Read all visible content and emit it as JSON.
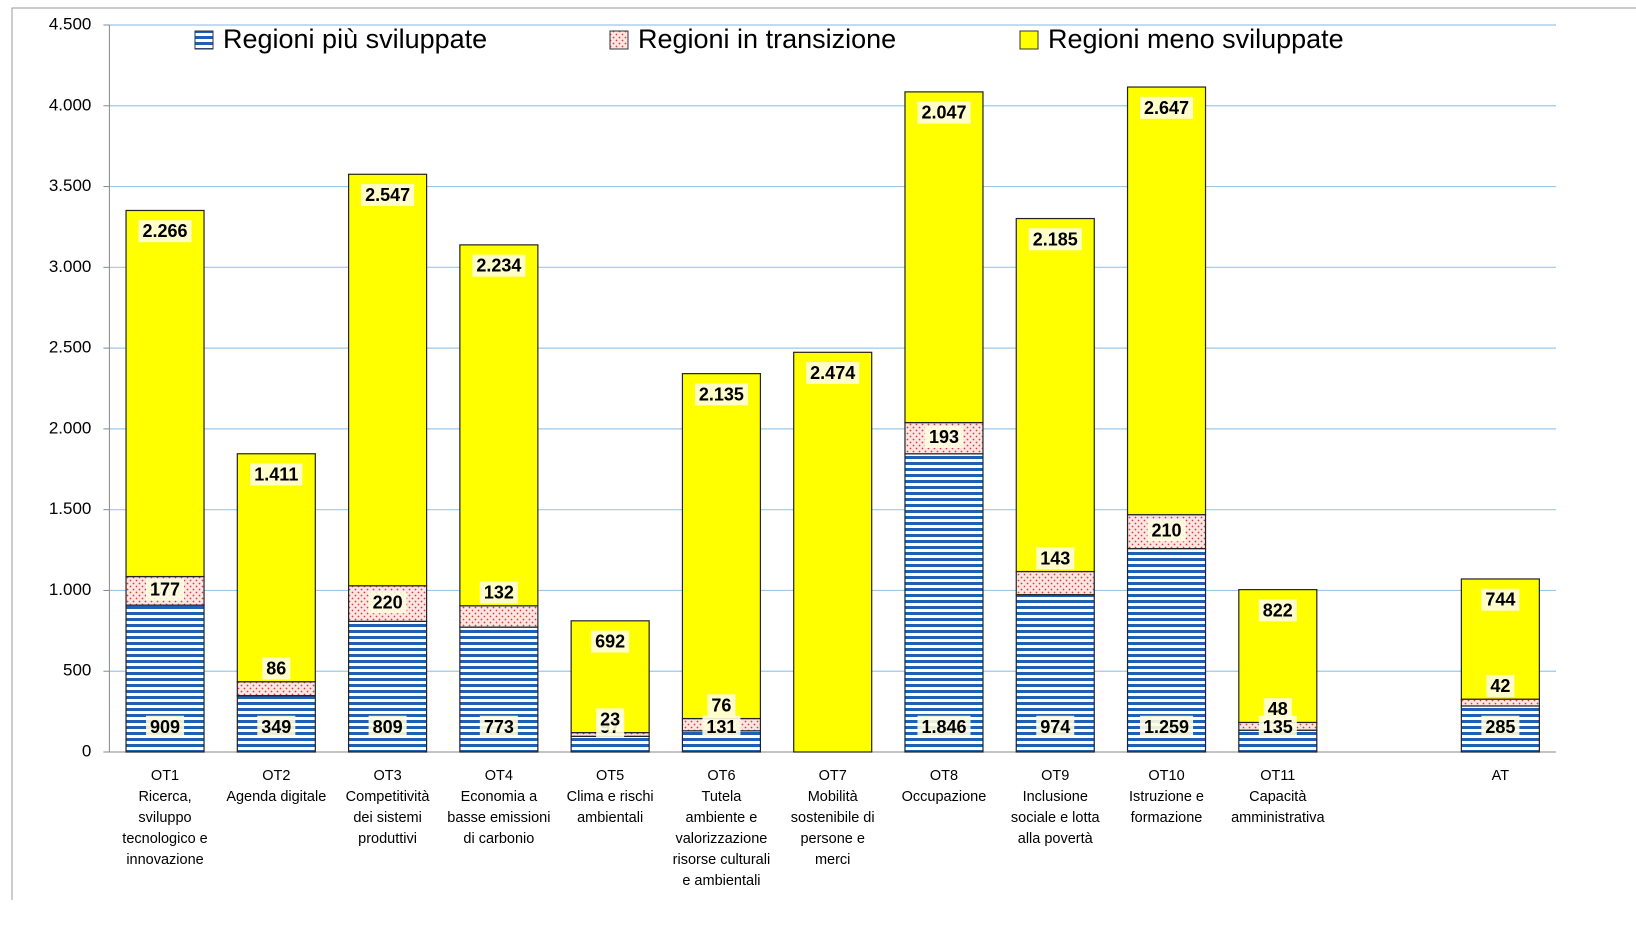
{
  "chart_data": {
    "type": "bar",
    "stacked": true,
    "categories": [
      "OT1\nRicerca,\nsviluppo\ntecnologico e\ninnovazione",
      "OT2\nAgenda digitale",
      "OT3\nCompetitività\ndei sistemi\nproduttivi",
      "OT4\nEconomia a\nbasse emissioni\ndi carbonio",
      "OT5\nClima e rischi\nambientali",
      "OT6\nTutela\nambiente e\nvalorizzazione\nrisorse culturali\ne ambientali",
      "OT7\nMobilità\nsostenibile di\npersone e\nmerci",
      "OT8\nOccupazione",
      "OT9\nInclusione\nsociale e lotta\nalla povertà",
      "OT10\nIstruzione e\nformazione",
      "OT11\nCapacità\namministrativa",
      null,
      "AT"
    ],
    "series": [
      {
        "name": "Regioni più sviluppate",
        "color": "#1f5fb4",
        "pattern": "stripes",
        "values": [
          909,
          349,
          809,
          773,
          97,
          131,
          null,
          1846,
          974,
          1259,
          135,
          null,
          285
        ],
        "value_labels": [
          "909",
          "349",
          "809",
          "773",
          "97",
          "131",
          null,
          "1.846",
          "974",
          "1.259",
          "135",
          null,
          "285"
        ]
      },
      {
        "name": "Regioni in transizione",
        "color": "#d9403a",
        "pattern": "dots",
        "values": [
          177,
          86,
          220,
          132,
          23,
          76,
          null,
          193,
          143,
          210,
          48,
          null,
          42
        ],
        "value_labels": [
          "177",
          "86",
          "220",
          "132",
          "23",
          "76",
          null,
          "193",
          "143",
          "210",
          "48",
          null,
          "42"
        ]
      },
      {
        "name": "Regioni meno sviluppate",
        "color": "#ffff00",
        "pattern": "solid",
        "values": [
          2266,
          1411,
          2547,
          2234,
          692,
          2135,
          2474,
          2047,
          2185,
          2647,
          822,
          null,
          744
        ],
        "value_labels": [
          "2.266",
          "1.411",
          "2.547",
          "2.234",
          "692",
          "2.135",
          "2.474",
          "2.047",
          "2.185",
          "2.647",
          "822",
          null,
          "744"
        ]
      }
    ],
    "ylim": [
      0,
      4500
    ],
    "yticks": [
      0,
      500,
      {
        "value": 1000,
        "label": "1.000"
      },
      {
        "value": 1500,
        "label": "1.500"
      },
      {
        "value": 2000,
        "label": "2.000"
      },
      {
        "value": 2500,
        "label": "2.500"
      },
      {
        "value": 3000,
        "label": "3.000"
      },
      {
        "value": 3500,
        "label": "3.500"
      },
      {
        "value": 4000,
        "label": "4.000"
      },
      {
        "value": 4500,
        "label": "4.500"
      }
    ],
    "grid": true,
    "legend": "top"
  }
}
